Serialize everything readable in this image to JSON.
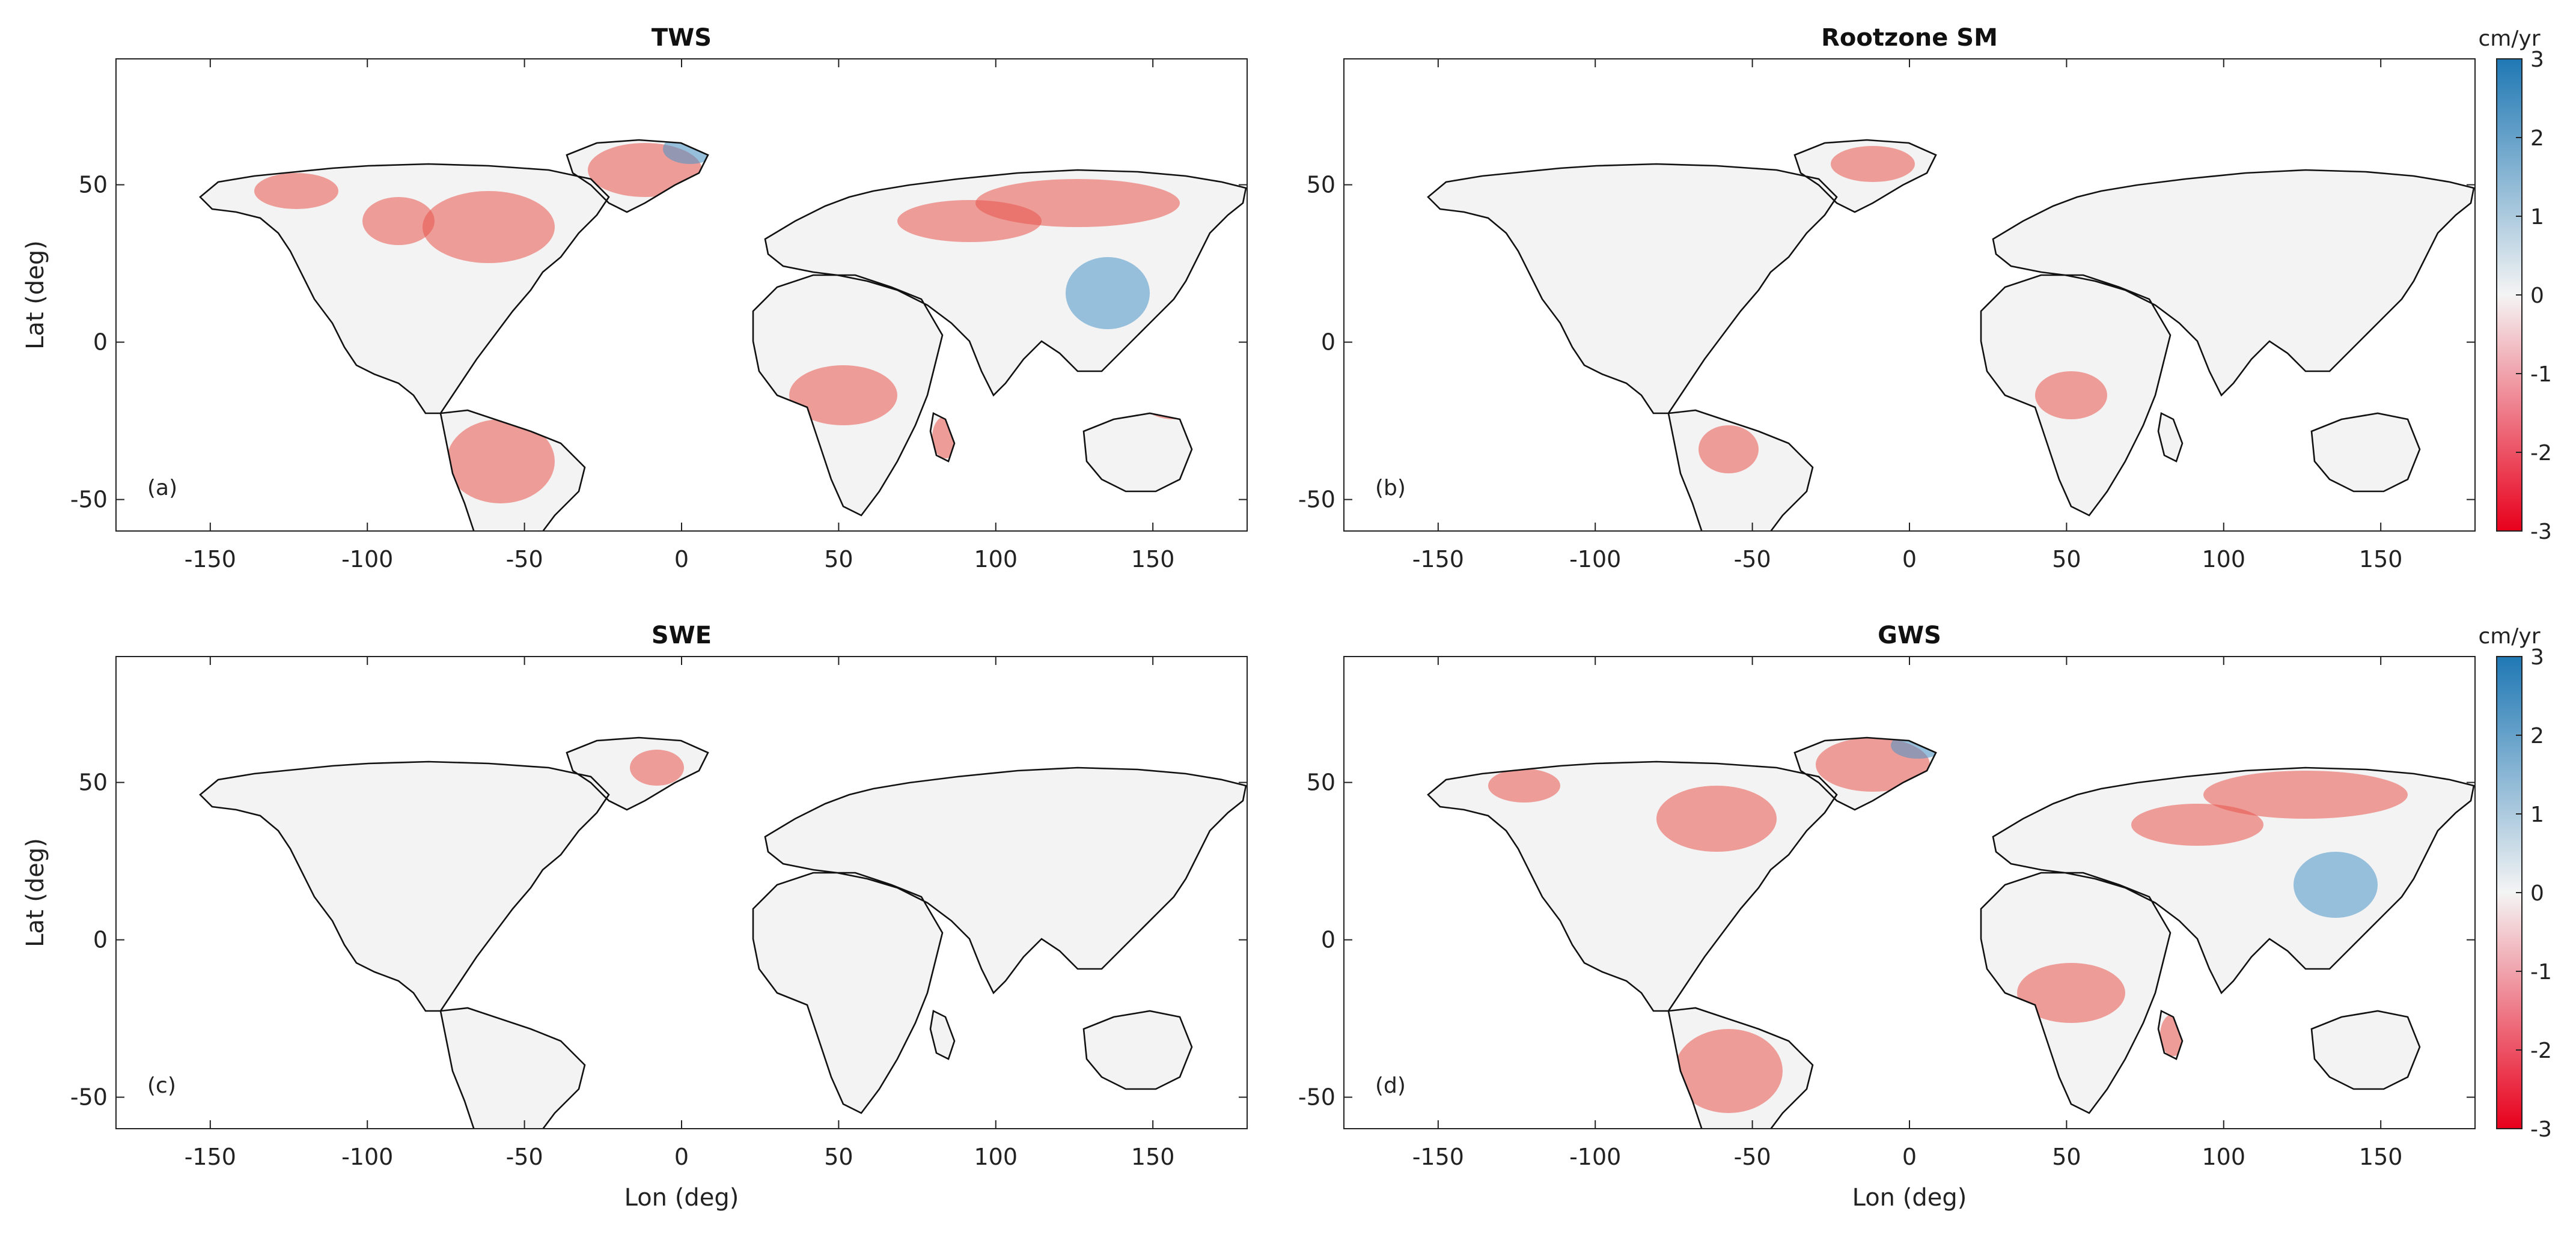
{
  "figure": {
    "panels": [
      {
        "id": "a",
        "title": "TWS",
        "label": "(a)",
        "show_xlabel": false,
        "show_ylabel": true
      },
      {
        "id": "b",
        "title": "Rootzone SM",
        "label": "(b)",
        "show_xlabel": false,
        "show_ylabel": false
      },
      {
        "id": "c",
        "title": "SWE",
        "label": "(c)",
        "show_xlabel": true,
        "show_ylabel": true
      },
      {
        "id": "d",
        "title": "GWS",
        "label": "(d)",
        "show_xlabel": true,
        "show_ylabel": false
      }
    ],
    "xlabel": "Lon (deg)",
    "ylabel": "Lat (deg)",
    "xlim": [
      -180,
      180
    ],
    "ylim": [
      -60,
      90
    ],
    "xticks": [
      -150,
      -100,
      -50,
      0,
      50,
      100,
      150
    ],
    "yticks": [
      -50,
      0,
      50
    ],
    "colorbar": {
      "unit": "cm/yr",
      "ticks": [
        3,
        2,
        1,
        0,
        -1,
        -2,
        -3
      ],
      "range": [
        -3,
        3
      ],
      "colors": {
        "high": "#1f78b4",
        "mid": "#f4f4f4",
        "low": "#e8001c"
      }
    },
    "colors": {
      "land": "#f3f3f3",
      "coast": "#111111",
      "loss": "#e8392f",
      "gain": "#2b84c0"
    }
  }
}
